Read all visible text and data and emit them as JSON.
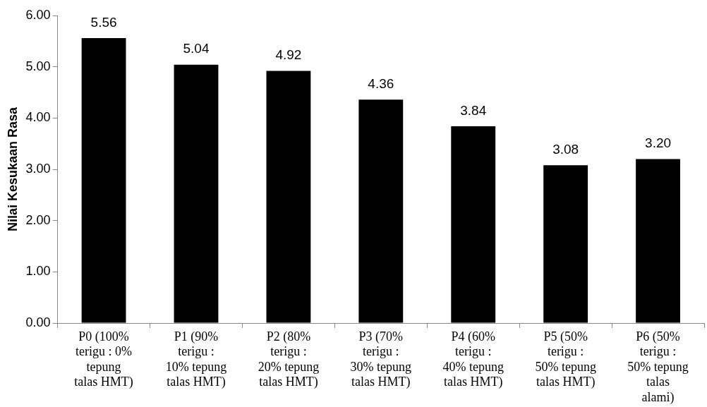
{
  "chart_data": {
    "type": "bar",
    "ylabel": "Nilai Kesukaan Rasa",
    "categories": [
      "P0 (100% terigu : 0% tepung talas HMT)",
      "P1 (90% terigu : 10% tepung talas HMT)",
      "P2 (80% terigu : 20% tepung talas HMT)",
      "P3 (70% terigu : 30% tepung talas HMT)",
      "P4 (60% terigu : 40% tepung talas HMT)",
      "P5 (50% terigu : 50% tepung talas HMT)",
      "P6 (50% terigu : 50% tepung talas alami)"
    ],
    "values": [
      5.56,
      5.04,
      4.92,
      4.36,
      3.84,
      3.08,
      3.2
    ],
    "value_labels": [
      "5.56",
      "5.04",
      "4.92",
      "4.36",
      "3.84",
      "3.08",
      "3.20"
    ],
    "color": "#000000",
    "ylim": [
      0,
      6
    ],
    "yticks": [
      {
        "value": 0,
        "label": "0.00"
      },
      {
        "value": 1,
        "label": "1.00"
      },
      {
        "value": 2,
        "label": "2.00"
      },
      {
        "value": 3,
        "label": "3.00"
      },
      {
        "value": 4,
        "label": "4.00"
      },
      {
        "value": 5,
        "label": "5.00"
      },
      {
        "value": 6,
        "label": "6.00"
      }
    ],
    "grid": false,
    "legend": false
  }
}
